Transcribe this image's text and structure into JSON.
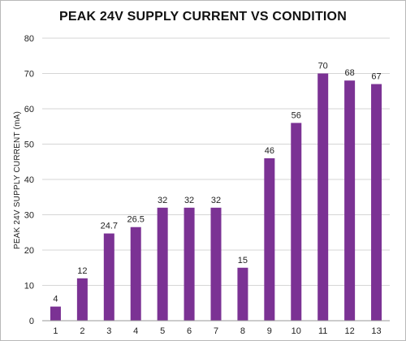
{
  "chart_data": {
    "type": "bar",
    "title": "PEAK 24V SUPPLY CURRENT VS CONDITION",
    "xlabel": "",
    "ylabel": "PEAK 24V SUPPLY CURRENT (mA)",
    "categories": [
      "1",
      "2",
      "3",
      "4",
      "5",
      "6",
      "7",
      "8",
      "9",
      "10",
      "11",
      "12",
      "13"
    ],
    "values": [
      4,
      12,
      24.7,
      26.5,
      32,
      32,
      32,
      15,
      46,
      56,
      70,
      68,
      67
    ],
    "data_labels": [
      "4",
      "12",
      "24.7",
      "26.5",
      "32",
      "32",
      "32",
      "15",
      "46",
      "56",
      "70",
      "68",
      "67"
    ],
    "ylim": [
      0,
      80
    ],
    "yticks": [
      "0",
      "10",
      "20",
      "30",
      "40",
      "50",
      "60",
      "70",
      "80"
    ],
    "grid": true,
    "legend": "none",
    "bar_color": "#7b3294"
  }
}
